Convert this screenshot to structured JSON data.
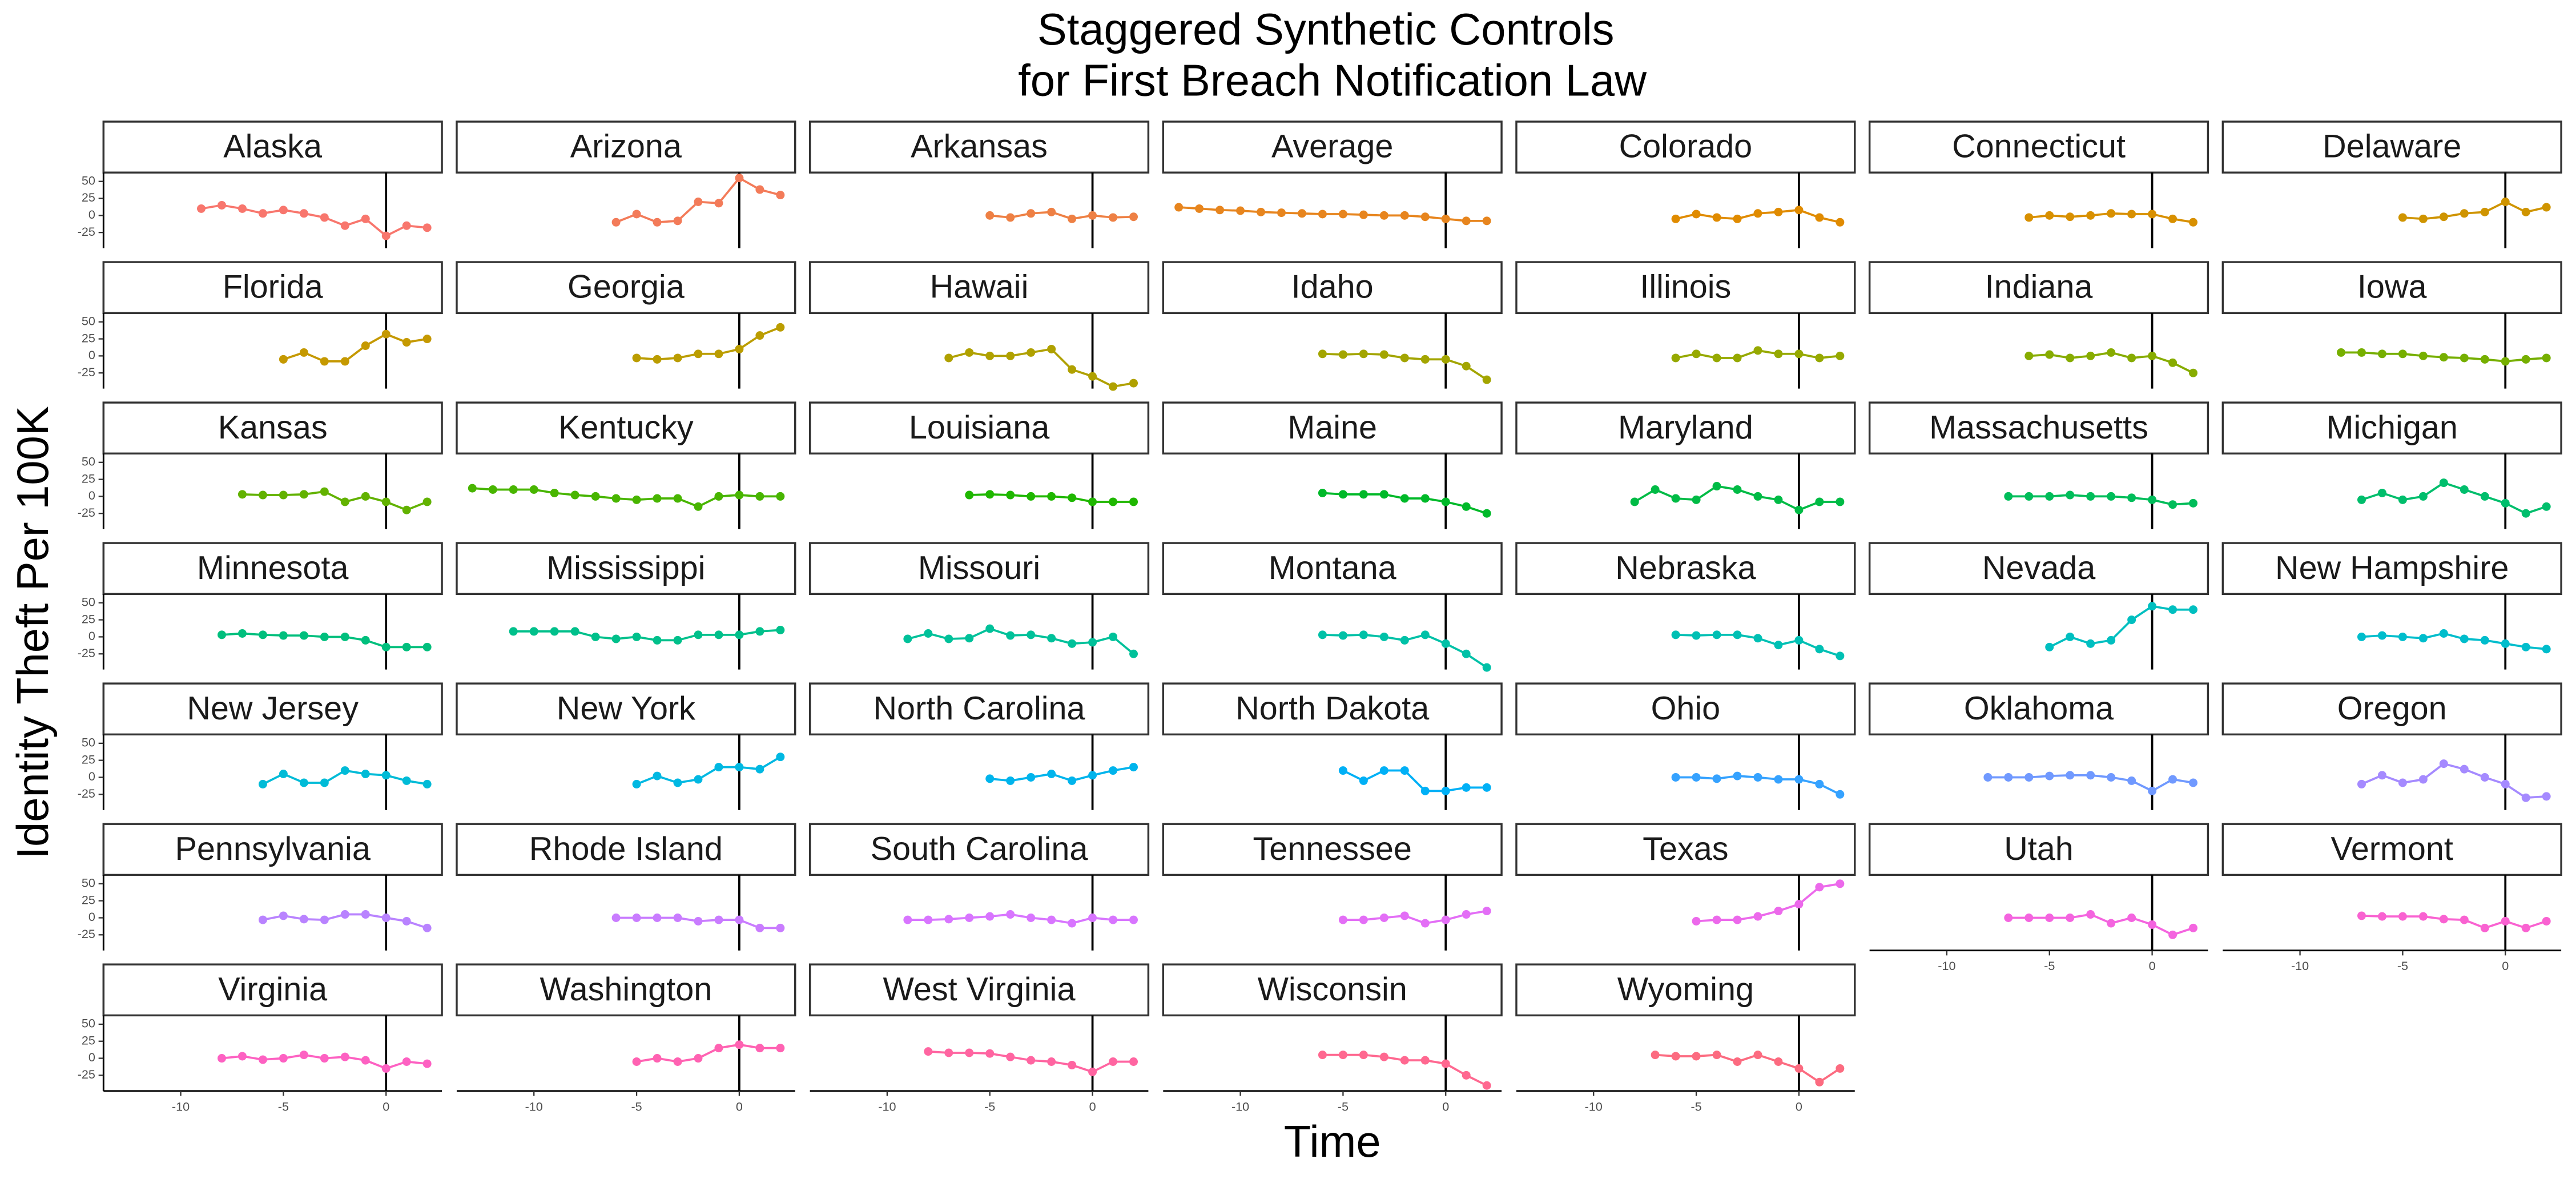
{
  "chart_data": {
    "type": "line",
    "title": [
      "Staggered Synthetic Controls",
      "for First Breach Notification Law"
    ],
    "x_label": "Time",
    "y_label": "Identity Theft Per 100K",
    "xlim": [
      -13.76,
      2.72
    ],
    "ylim": [
      -48,
      63
    ],
    "xticks": [
      -10,
      -5,
      0
    ],
    "yticks": [
      -25,
      0,
      25,
      50
    ],
    "reference_line_x": 0,
    "panels": [
      {
        "name": "Alaska",
        "color": "#F8766D",
        "x": [
          -9,
          -8,
          -7,
          -6,
          -5,
          -4,
          -3,
          -2,
          -1,
          0,
          1,
          2
        ],
        "values": [
          10,
          15,
          10,
          3,
          8,
          3,
          -3,
          -15,
          -5,
          -30,
          -15,
          -18
        ]
      },
      {
        "name": "Arizona",
        "color": "#F37B59",
        "x": [
          -6,
          -5,
          -4,
          -3,
          -2,
          -1,
          0,
          1,
          2
        ],
        "values": [
          -10,
          2,
          -10,
          -8,
          20,
          18,
          55,
          38,
          30
        ]
      },
      {
        "name": "Arkansas",
        "color": "#EE8044",
        "x": [
          -5,
          -4,
          -3,
          -2,
          -1,
          0,
          1,
          2
        ],
        "values": [
          0,
          -3,
          3,
          5,
          -5,
          0,
          -3,
          -2
        ]
      },
      {
        "name": "Average",
        "color": "#E7851E",
        "x": [
          -13,
          -12,
          -11,
          -10,
          -9,
          -8,
          -7,
          -6,
          -5,
          -4,
          -3,
          -2,
          -1,
          0,
          1,
          2
        ],
        "values": [
          12,
          10,
          8,
          7,
          5,
          4,
          3,
          2,
          2,
          1,
          0,
          0,
          -2,
          -5,
          -8,
          -8
        ]
      },
      {
        "name": "Colorado",
        "color": "#E08B00",
        "x": [
          -6,
          -5,
          -4,
          -3,
          -2,
          -1,
          0,
          1,
          2
        ],
        "values": [
          -5,
          2,
          -3,
          -5,
          3,
          5,
          8,
          -3,
          -10
        ]
      },
      {
        "name": "Connecticut",
        "color": "#D89000",
        "x": [
          -6,
          -5,
          -4,
          -3,
          -2,
          -1,
          0,
          1,
          2
        ],
        "values": [
          -3,
          0,
          -2,
          0,
          3,
          2,
          2,
          -5,
          -10
        ]
      },
      {
        "name": "Delaware",
        "color": "#CF9400",
        "x": [
          -5,
          -4,
          -3,
          -2,
          -1,
          0,
          1,
          2
        ],
        "values": [
          -3,
          -5,
          -2,
          3,
          5,
          20,
          5,
          12
        ]
      },
      {
        "name": "Florida",
        "color": "#C59900",
        "x": [
          -5,
          -4,
          -3,
          -2,
          -1,
          0,
          1,
          2
        ],
        "values": [
          -5,
          5,
          -8,
          -8,
          15,
          32,
          20,
          25
        ]
      },
      {
        "name": "Georgia",
        "color": "#BB9D00",
        "x": [
          -5,
          -4,
          -3,
          -2,
          -1,
          0,
          1,
          2
        ],
        "values": [
          -3,
          -5,
          -3,
          3,
          3,
          10,
          30,
          42
        ]
      },
      {
        "name": "Hawaii",
        "color": "#B0A100",
        "x": [
          -7,
          -6,
          -5,
          -4,
          -3,
          -2,
          -1,
          0,
          1,
          2
        ],
        "values": [
          -3,
          5,
          0,
          0,
          5,
          10,
          -20,
          -30,
          -45,
          -40
        ]
      },
      {
        "name": "Idaho",
        "color": "#A3A500",
        "x": [
          -6,
          -5,
          -4,
          -3,
          -2,
          -1,
          0,
          1,
          2
        ],
        "values": [
          3,
          2,
          3,
          2,
          -3,
          -5,
          -5,
          -15,
          -35
        ]
      },
      {
        "name": "Illinois",
        "color": "#96A900",
        "x": [
          -6,
          -5,
          -4,
          -3,
          -2,
          -1,
          0,
          1,
          2
        ],
        "values": [
          -3,
          3,
          -3,
          -3,
          8,
          3,
          3,
          -3,
          0
        ]
      },
      {
        "name": "Indiana",
        "color": "#87AC00",
        "x": [
          -6,
          -5,
          -4,
          -3,
          -2,
          -1,
          0,
          1,
          2
        ],
        "values": [
          0,
          2,
          -3,
          0,
          5,
          -3,
          0,
          -10,
          -25
        ]
      },
      {
        "name": "Iowa",
        "color": "#76AF00",
        "x": [
          -8,
          -7,
          -6,
          -5,
          -4,
          -3,
          -2,
          -1,
          0,
          1,
          2
        ],
        "values": [
          5,
          5,
          3,
          3,
          0,
          -2,
          -3,
          -5,
          -8,
          -5,
          -3
        ]
      },
      {
        "name": "Kansas",
        "color": "#62B200",
        "x": [
          -7,
          -6,
          -5,
          -4,
          -3,
          -2,
          -1,
          0,
          1,
          2
        ],
        "values": [
          3,
          2,
          2,
          3,
          7,
          -8,
          0,
          -8,
          -20,
          -8
        ]
      },
      {
        "name": "Kentucky",
        "color": "#48B500",
        "x": [
          -13,
          -12,
          -11,
          -10,
          -9,
          -8,
          -7,
          -6,
          -5,
          -4,
          -3,
          -2,
          -1,
          0,
          1,
          2
        ],
        "values": [
          12,
          10,
          10,
          10,
          5,
          2,
          0,
          -3,
          -5,
          -3,
          -3,
          -15,
          0,
          2,
          0,
          0
        ]
      },
      {
        "name": "Louisiana",
        "color": "#1FB700",
        "x": [
          -6,
          -5,
          -4,
          -3,
          -2,
          -1,
          0,
          1,
          2
        ],
        "values": [
          2,
          3,
          2,
          0,
          0,
          -2,
          -8,
          -8,
          -8
        ]
      },
      {
        "name": "Maine",
        "color": "#00B929",
        "x": [
          -6,
          -5,
          -4,
          -3,
          -2,
          -1,
          0,
          1,
          2
        ],
        "values": [
          5,
          3,
          3,
          3,
          -3,
          -3,
          -8,
          -15,
          -25
        ]
      },
      {
        "name": "Maryland",
        "color": "#00BB45",
        "x": [
          -8,
          -7,
          -6,
          -5,
          -4,
          -3,
          -2,
          -1,
          0,
          1,
          2
        ],
        "values": [
          -8,
          10,
          -3,
          -5,
          15,
          10,
          0,
          -5,
          -20,
          -8,
          -8
        ]
      },
      {
        "name": "Massachusetts",
        "color": "#00BD5A",
        "x": [
          -7,
          -6,
          -5,
          -4,
          -3,
          -2,
          -1,
          0,
          1,
          2
        ],
        "values": [
          0,
          0,
          0,
          2,
          0,
          0,
          -2,
          -5,
          -12,
          -10
        ]
      },
      {
        "name": "Michigan",
        "color": "#00BE6C",
        "x": [
          -7,
          -6,
          -5,
          -4,
          -3,
          -2,
          -1,
          0,
          1,
          2
        ],
        "values": [
          -5,
          5,
          -5,
          0,
          20,
          10,
          0,
          -10,
          -25,
          -15
        ]
      },
      {
        "name": "Minnesota",
        "color": "#00BF7D",
        "x": [
          -8,
          -7,
          -6,
          -5,
          -4,
          -3,
          -2,
          -1,
          0,
          1,
          2
        ],
        "values": [
          3,
          5,
          3,
          2,
          2,
          0,
          0,
          -5,
          -15,
          -15,
          -15
        ]
      },
      {
        "name": "Mississippi",
        "color": "#00C08B",
        "x": [
          -11,
          -10,
          -9,
          -8,
          -7,
          -6,
          -5,
          -4,
          -3,
          -2,
          -1,
          0,
          1,
          2
        ],
        "values": [
          8,
          8,
          8,
          8,
          0,
          -3,
          0,
          -5,
          -5,
          3,
          3,
          3,
          8,
          10
        ]
      },
      {
        "name": "Missouri",
        "color": "#00C19A",
        "x": [
          -9,
          -8,
          -7,
          -6,
          -5,
          -4,
          -3,
          -2,
          -1,
          0,
          1,
          2
        ],
        "values": [
          -3,
          5,
          -3,
          -2,
          12,
          2,
          3,
          -2,
          -10,
          -8,
          0,
          -25
        ]
      },
      {
        "name": "Montana",
        "color": "#00C1A7",
        "x": [
          -6,
          -5,
          -4,
          -3,
          -2,
          -1,
          0,
          1,
          2
        ],
        "values": [
          3,
          2,
          3,
          0,
          -5,
          3,
          -10,
          -25,
          -45
        ]
      },
      {
        "name": "Nebraska",
        "color": "#00C0B4",
        "x": [
          -6,
          -5,
          -4,
          -3,
          -2,
          -1,
          0,
          1,
          2
        ],
        "values": [
          3,
          2,
          3,
          3,
          -2,
          -12,
          -5,
          -18,
          -28
        ]
      },
      {
        "name": "Nevada",
        "color": "#00BFC0",
        "x": [
          -5,
          -4,
          -3,
          -2,
          -1,
          0,
          1,
          2
        ],
        "values": [
          -15,
          0,
          -10,
          -5,
          25,
          45,
          40,
          40
        ]
      },
      {
        "name": "New Hampshire",
        "color": "#00BDCC",
        "x": [
          -7,
          -6,
          -5,
          -4,
          -3,
          -2,
          -1,
          0,
          1,
          2
        ],
        "values": [
          0,
          2,
          0,
          -2,
          5,
          -3,
          -5,
          -10,
          -15,
          -18
        ]
      },
      {
        "name": "New Jersey",
        "color": "#00BBD7",
        "x": [
          -6,
          -5,
          -4,
          -3,
          -2,
          -1,
          0,
          1,
          2
        ],
        "values": [
          -10,
          5,
          -8,
          -8,
          10,
          5,
          3,
          -5,
          -10
        ]
      },
      {
        "name": "New York",
        "color": "#00B8E2",
        "x": [
          -5,
          -4,
          -3,
          -2,
          -1,
          0,
          1,
          2
        ],
        "values": [
          -10,
          2,
          -8,
          -3,
          15,
          15,
          12,
          30
        ]
      },
      {
        "name": "North Carolina",
        "color": "#00B4EC",
        "x": [
          -5,
          -4,
          -3,
          -2,
          -1,
          0,
          1,
          2
        ],
        "values": [
          -2,
          -5,
          0,
          5,
          -5,
          3,
          10,
          15
        ]
      },
      {
        "name": "North Dakota",
        "color": "#00B0F6",
        "x": [
          -5,
          -4,
          -3,
          -2,
          -1,
          0,
          1,
          2
        ],
        "values": [
          10,
          -5,
          10,
          10,
          -20,
          -20,
          -15,
          -15
        ]
      },
      {
        "name": "Ohio",
        "color": "#35A2FF",
        "x": [
          -6,
          -5,
          -4,
          -3,
          -2,
          -1,
          0,
          1,
          2
        ],
        "values": [
          0,
          0,
          -2,
          2,
          0,
          -3,
          -3,
          -10,
          -25
        ]
      },
      {
        "name": "Oklahoma",
        "color": "#7099FF",
        "x": [
          -8,
          -7,
          -6,
          -5,
          -4,
          -3,
          -2,
          -1,
          0,
          1,
          2
        ],
        "values": [
          0,
          0,
          0,
          2,
          3,
          3,
          0,
          -5,
          -20,
          -3,
          -8
        ]
      },
      {
        "name": "Oregon",
        "color": "#A58AFF",
        "x": [
          -7,
          -6,
          -5,
          -4,
          -3,
          -2,
          -1,
          0,
          1,
          2
        ],
        "values": [
          -10,
          3,
          -8,
          -3,
          20,
          12,
          0,
          -10,
          -30,
          -28
        ]
      },
      {
        "name": "Pennsylvania",
        "color": "#B983FF",
        "x": [
          -6,
          -5,
          -4,
          -3,
          -2,
          -1,
          0,
          1,
          2
        ],
        "values": [
          -3,
          3,
          -2,
          -3,
          5,
          5,
          0,
          -5,
          -15
        ]
      },
      {
        "name": "Rhode Island",
        "color": "#C97CFF",
        "x": [
          -6,
          -5,
          -4,
          -3,
          -2,
          -1,
          0,
          1,
          2
        ],
        "values": [
          0,
          0,
          0,
          0,
          -5,
          -3,
          -3,
          -15,
          -15
        ]
      },
      {
        "name": "South Carolina",
        "color": "#D875FF",
        "x": [
          -9,
          -8,
          -7,
          -6,
          -5,
          -4,
          -3,
          -2,
          -1,
          0,
          1,
          2
        ],
        "values": [
          -3,
          -3,
          -2,
          0,
          2,
          5,
          0,
          -3,
          -8,
          0,
          -3,
          -3
        ]
      },
      {
        "name": "Tennessee",
        "color": "#E36EF6",
        "x": [
          -5,
          -4,
          -3,
          -2,
          -1,
          0,
          1,
          2
        ],
        "values": [
          -3,
          -3,
          0,
          3,
          -8,
          -3,
          5,
          10
        ]
      },
      {
        "name": "Texas",
        "color": "#EC69EB",
        "x": [
          -5,
          -4,
          -3,
          -2,
          -1,
          0,
          1,
          2
        ],
        "values": [
          -5,
          -3,
          -3,
          2,
          10,
          20,
          45,
          50
        ]
      },
      {
        "name": "Utah",
        "color": "#F464DF",
        "x": [
          -7,
          -6,
          -5,
          -4,
          -3,
          -2,
          -1,
          0,
          1,
          2
        ],
        "values": [
          0,
          0,
          0,
          0,
          5,
          -8,
          0,
          -10,
          -25,
          -15
        ]
      },
      {
        "name": "Vermont",
        "color": "#F962D1",
        "x": [
          -7,
          -6,
          -5,
          -4,
          -3,
          -2,
          -1,
          0,
          1,
          2
        ],
        "values": [
          3,
          2,
          2,
          2,
          -2,
          -3,
          -15,
          -5,
          -15,
          -5
        ]
      },
      {
        "name": "Virginia",
        "color": "#FD61C2",
        "x": [
          -8,
          -7,
          -6,
          -5,
          -4,
          -3,
          -2,
          -1,
          0,
          1,
          2
        ],
        "values": [
          0,
          3,
          -2,
          0,
          5,
          0,
          2,
          -3,
          -15,
          -5,
          -8
        ]
      },
      {
        "name": "Washington",
        "color": "#FF62B2",
        "x": [
          -5,
          -4,
          -3,
          -2,
          -1,
          0,
          1,
          2
        ],
        "values": [
          -5,
          0,
          -5,
          0,
          15,
          20,
          15,
          15
        ]
      },
      {
        "name": "West Virginia",
        "color": "#FF65A1",
        "x": [
          -8,
          -7,
          -6,
          -5,
          -4,
          -3,
          -2,
          -1,
          0,
          1,
          2
        ],
        "values": [
          10,
          8,
          8,
          7,
          2,
          -3,
          -5,
          -10,
          -20,
          -5,
          -5
        ]
      },
      {
        "name": "Wisconsin",
        "color": "#FF6890",
        "x": [
          -6,
          -5,
          -4,
          -3,
          -2,
          -1,
          0,
          1,
          2
        ],
        "values": [
          5,
          5,
          5,
          2,
          -3,
          -3,
          -8,
          -25,
          -40
        ]
      },
      {
        "name": "Wyoming",
        "color": "#FC6B80",
        "x": [
          -7,
          -6,
          -5,
          -4,
          -3,
          -2,
          -1,
          0,
          1,
          2
        ],
        "values": [
          5,
          3,
          3,
          5,
          -5,
          5,
          -5,
          -15,
          -35,
          -15
        ]
      }
    ]
  }
}
